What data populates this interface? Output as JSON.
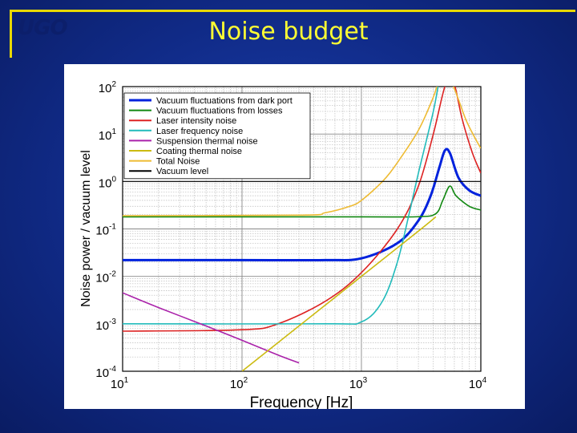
{
  "slide": {
    "title": "Noise budget",
    "logo_text": "UGO"
  },
  "colors": {
    "background": "#102a86",
    "frame": "#e8d800",
    "title": "#ffff33"
  },
  "chart_data": {
    "type": "line",
    "xscale": "log",
    "yscale": "log",
    "xlim": [
      10,
      10000
    ],
    "ylim": [
      0.0001,
      100
    ],
    "xlabel": "Frequency [Hz]",
    "ylabel": "Noise power / vacuum level",
    "grid": true,
    "legend_position": "top-left",
    "xticks": [
      {
        "value": 10,
        "base": "10",
        "exp": "1"
      },
      {
        "value": 100,
        "base": "10",
        "exp": "2"
      },
      {
        "value": 1000,
        "base": "10",
        "exp": "3"
      },
      {
        "value": 10000,
        "base": "10",
        "exp": "4"
      }
    ],
    "yticks": [
      {
        "value": 0.0001,
        "base": "10",
        "exp": "-4"
      },
      {
        "value": 0.001,
        "base": "10",
        "exp": "-3"
      },
      {
        "value": 0.01,
        "base": "10",
        "exp": "-2"
      },
      {
        "value": 0.1,
        "base": "10",
        "exp": "-1"
      },
      {
        "value": 1,
        "base": "10",
        "exp": "0"
      },
      {
        "value": 10,
        "base": "10",
        "exp": "1"
      },
      {
        "value": 100,
        "base": "10",
        "exp": "2"
      }
    ],
    "series": [
      {
        "name": "Vacuum fluctuations from dark port",
        "color": "#0022dd",
        "width": 3,
        "x": [
          10,
          100,
          500,
          1000,
          2000,
          3000,
          3800,
          4500,
          5000,
          5500,
          6500,
          8000,
          10000
        ],
        "y": [
          0.022,
          0.022,
          0.022,
          0.024,
          0.05,
          0.15,
          0.5,
          2,
          4.5,
          4,
          1.2,
          0.65,
          0.5
        ]
      },
      {
        "name": "Vacuum fluctuations from losses",
        "color": "#118811",
        "width": 1.6,
        "x": [
          10,
          1000,
          3000,
          4200,
          4800,
          5500,
          6200,
          8000,
          10000
        ],
        "y": [
          0.18,
          0.18,
          0.181,
          0.21,
          0.4,
          0.8,
          0.5,
          0.3,
          0.25
        ]
      },
      {
        "name": "Laser intensity noise",
        "color": "#dd2222",
        "width": 1.6,
        "x": [
          10,
          100,
          200,
          500,
          1000,
          2000,
          3000,
          4000,
          5000,
          5800,
          7000,
          8500,
          10000
        ],
        "y": [
          0.0007,
          0.00075,
          0.001,
          0.003,
          0.012,
          0.1,
          0.8,
          10,
          100,
          150,
          20,
          4,
          1.5
        ]
      },
      {
        "name": "Laser frequency noise",
        "color": "#22bbbb",
        "width": 1.6,
        "x": [
          10,
          500,
          1000,
          1500,
          2000,
          2500,
          3000,
          4000,
          4500
        ],
        "y": [
          0.001,
          0.001,
          0.0011,
          0.003,
          0.02,
          0.2,
          1.5,
          30,
          150
        ]
      },
      {
        "name": "Suspension thermal noise",
        "color": "#aa22aa",
        "width": 1.6,
        "x": [
          10,
          20,
          50,
          100,
          200,
          300
        ],
        "y": [
          0.0045,
          0.0022,
          0.0009,
          0.00045,
          0.00022,
          0.00015
        ]
      },
      {
        "name": "Coating thermal noise",
        "color": "#ccbb11",
        "width": 1.6,
        "x": [
          100,
          300,
          1000,
          3000,
          4200
        ],
        "y": [
          0.0001,
          0.0009,
          0.01,
          0.09,
          0.18
        ]
      },
      {
        "name": "Total Noise",
        "color": "#eebb33",
        "width": 1.6,
        "x": [
          10,
          300,
          500,
          800,
          1000,
          1500,
          2000,
          3000,
          4000,
          4500,
          5000,
          6000,
          7500,
          9000,
          10000
        ],
        "y": [
          0.19,
          0.195,
          0.22,
          0.3,
          0.4,
          1,
          2.5,
          12,
          60,
          150,
          200,
          90,
          20,
          8,
          5
        ]
      },
      {
        "name": "Vacuum level",
        "color": "#000000",
        "width": 1.2,
        "x": [
          10,
          10000
        ],
        "y": [
          1,
          1
        ]
      }
    ]
  }
}
